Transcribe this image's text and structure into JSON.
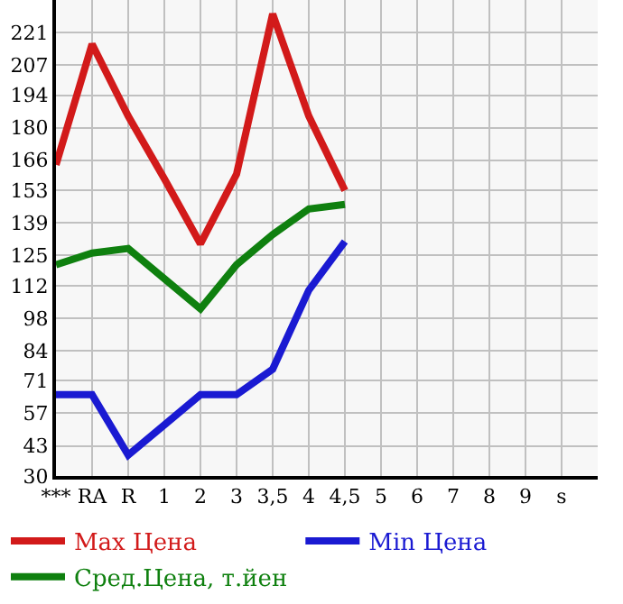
{
  "chart_data": {
    "type": "line",
    "categories": [
      "***",
      "RA",
      "R",
      "1",
      "2",
      "3",
      "3,5",
      "4",
      "4,5",
      "5",
      "6",
      "7",
      "8",
      "9",
      "s"
    ],
    "series": [
      {
        "name": "Max Цена",
        "color": "#d21a1a",
        "values": [
          164,
          216,
          185,
          158,
          130,
          160,
          229,
          185,
          153,
          null,
          null,
          null,
          null,
          null,
          null
        ]
      },
      {
        "name": "Min Цена",
        "color": "#1a1ad2",
        "values": [
          65,
          65,
          39,
          52,
          65,
          65,
          76,
          110,
          131,
          null,
          null,
          null,
          null,
          null,
          null
        ]
      },
      {
        "name": "Сред.Цена, т.йен",
        "color": "#0f800f",
        "values": [
          121,
          126,
          128,
          115,
          102,
          121,
          134,
          145,
          147,
          null,
          null,
          null,
          null,
          null,
          null
        ]
      }
    ],
    "ylim": [
      30,
      235
    ],
    "yticks": [
      30,
      43,
      57,
      71,
      84,
      98,
      112,
      125,
      139,
      153,
      166,
      180,
      194,
      207,
      221
    ],
    "grid": true,
    "legend": "bottom",
    "marker": "none",
    "line_style": "solid"
  }
}
